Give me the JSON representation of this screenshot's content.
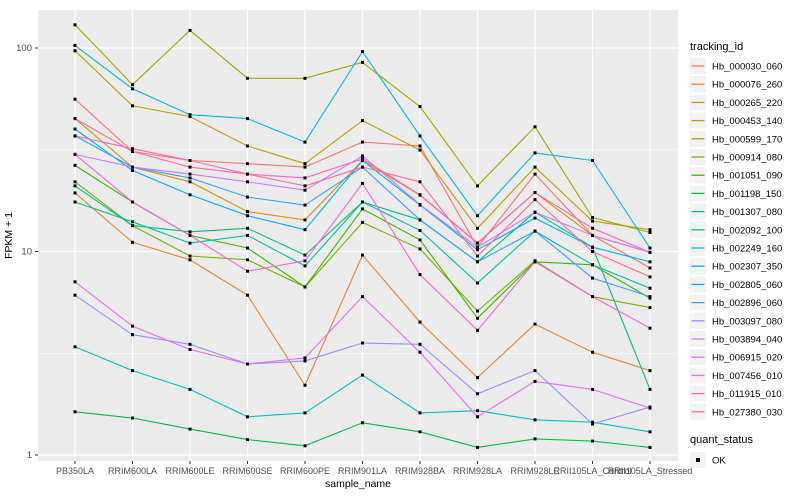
{
  "figure": {
    "bg": "#FFFFFF",
    "panel_bg": "#EBEBEB",
    "grid_color": "#FFFFFF",
    "tick_label_color": "#4D4D4D",
    "axis_title_color": "#000000",
    "point_color": "#000000",
    "legend_key_bg": "#F2F2F2"
  },
  "chart_data": {
    "type": "line",
    "xlabel": "sample_name",
    "ylabel": "FPKM + 1",
    "y_scale": "log10",
    "y_ticks": [
      "100",
      "10",
      "1"
    ],
    "y_tick_values": [
      100,
      10,
      1
    ],
    "y_minor_values": [
      31.62,
      3.162
    ],
    "ylim": [
      0.93,
      154
    ],
    "grid": "on",
    "legend_position": "right",
    "point_shape": "square",
    "categories": [
      "PB350LA",
      "RRIM600LA",
      "RRIM600LE",
      "RRIM600SE",
      "RRIM600PE",
      "RRIM901LA",
      "RRIM928BA",
      "RRIM928LA",
      "RRIM928LE",
      "RRII105LA_Control",
      "RRII105LA_Stressed"
    ],
    "series": [
      {
        "name": "Hb_000030_060",
        "color": "#F8766D",
        "values": [
          56,
          31,
          28,
          27,
          26,
          34.5,
          33,
          10.5,
          24,
          12,
          8.3
        ]
      },
      {
        "name": "Hb_000076_260",
        "color": "#EA8331",
        "values": [
          19.4,
          11.1,
          9.1,
          6.1,
          2.2,
          9.6,
          4.5,
          2.4,
          4.4,
          3.2,
          2.6
        ]
      },
      {
        "name": "Hb_000265_220",
        "color": "#D89000",
        "values": [
          45,
          26,
          22,
          15.7,
          14.3,
          28,
          18.9,
          11,
          19.5,
          12,
          9.9
        ]
      },
      {
        "name": "Hb_000453_140",
        "color": "#C09B00",
        "values": [
          97,
          52,
          46,
          33,
          27,
          44,
          31.5,
          13,
          26,
          14.1,
          12.8
        ]
      },
      {
        "name": "Hb_000599_170",
        "color": "#A3A500",
        "values": [
          130,
          66,
          122,
          71,
          71,
          85,
          51.5,
          21,
          41,
          14.7,
          12.4
        ]
      },
      {
        "name": "Hb_000914_080",
        "color": "#7CAE00",
        "values": [
          22,
          13.4,
          9.5,
          9.1,
          6.7,
          13.9,
          10.3,
          5.1,
          9.0,
          6.0,
          5.3
        ]
      },
      {
        "name": "Hb_001051_090",
        "color": "#39B600",
        "values": [
          26.5,
          17.5,
          12,
          10.4,
          6.7,
          16.2,
          11.4,
          4.7,
          8.9,
          8.6,
          5.9
        ]
      },
      {
        "name": "Hb_001198_150",
        "color": "#00BB4E",
        "values": [
          1.63,
          1.52,
          1.34,
          1.19,
          1.11,
          1.44,
          1.3,
          1.09,
          1.2,
          1.17,
          1.09
        ]
      },
      {
        "name": "Hb_001307_080",
        "color": "#00BF7D",
        "values": [
          21,
          13.4,
          12.5,
          13,
          9.6,
          17.5,
          14.3,
          8.9,
          15.6,
          10.5,
          2.1
        ]
      },
      {
        "name": "Hb_002092_100",
        "color": "#00C1A3",
        "values": [
          17.5,
          14,
          11,
          12,
          8.5,
          17.5,
          12.7,
          7.0,
          12.6,
          8.6,
          6.6
        ]
      },
      {
        "name": "Hb_002249_160",
        "color": "#00BFC4",
        "values": [
          3.4,
          2.6,
          2.1,
          1.54,
          1.61,
          2.47,
          1.61,
          1.65,
          1.49,
          1.45,
          1.3
        ]
      },
      {
        "name": "Hb_002307_350",
        "color": "#00BAE0",
        "values": [
          103,
          63,
          47,
          45,
          34.5,
          96,
          37,
          15,
          30.5,
          28,
          10.4
        ]
      },
      {
        "name": "Hb_002805_060",
        "color": "#00B0F6",
        "values": [
          40,
          25,
          19,
          15,
          12.8,
          28,
          16.9,
          10.2,
          14.6,
          10.5,
          8.9
        ]
      },
      {
        "name": "Hb_002896_060",
        "color": "#35A2FF",
        "values": [
          37,
          26,
          23,
          18.5,
          16.9,
          26,
          14.3,
          8.9,
          12.6,
          7.4,
          6.0
        ]
      },
      {
        "name": "Hb_003097_080",
        "color": "#9590FF",
        "values": [
          6.1,
          3.9,
          3.5,
          2.8,
          2.9,
          3.55,
          3.5,
          2.0,
          2.6,
          1.42,
          1.72
        ]
      },
      {
        "name": "Hb_003894_040",
        "color": "#C77CFF",
        "values": [
          30,
          26,
          24,
          22,
          20,
          29.5,
          17,
          10.5,
          15.6,
          12,
          9.9
        ]
      },
      {
        "name": "Hb_006915_020",
        "color": "#E76BF3",
        "values": [
          7.1,
          4.3,
          3.3,
          2.8,
          3.0,
          6.0,
          3.2,
          1.54,
          2.3,
          2.1,
          1.7
        ]
      },
      {
        "name": "Hb_007456_010",
        "color": "#FA62DB",
        "values": [
          30,
          17.5,
          12,
          8.0,
          9.0,
          21.6,
          7.7,
          4.1,
          8.9,
          6.0,
          4.2
        ]
      },
      {
        "name": "Hb_011915_010",
        "color": "#FF62BC",
        "values": [
          37,
          32,
          28,
          24,
          23,
          28.5,
          19,
          11,
          19.5,
          13,
          9.9
        ]
      },
      {
        "name": "Hb_027380_030",
        "color": "#FF6A98",
        "values": [
          45,
          31,
          26,
          24,
          21,
          26,
          22,
          9.5,
          18,
          10,
          7.5
        ]
      }
    ],
    "legend": {
      "tracking_title": "tracking_id",
      "quant_title": "quant_status",
      "quant_items": [
        {
          "label": "OK",
          "marker": "black-square"
        }
      ]
    }
  }
}
